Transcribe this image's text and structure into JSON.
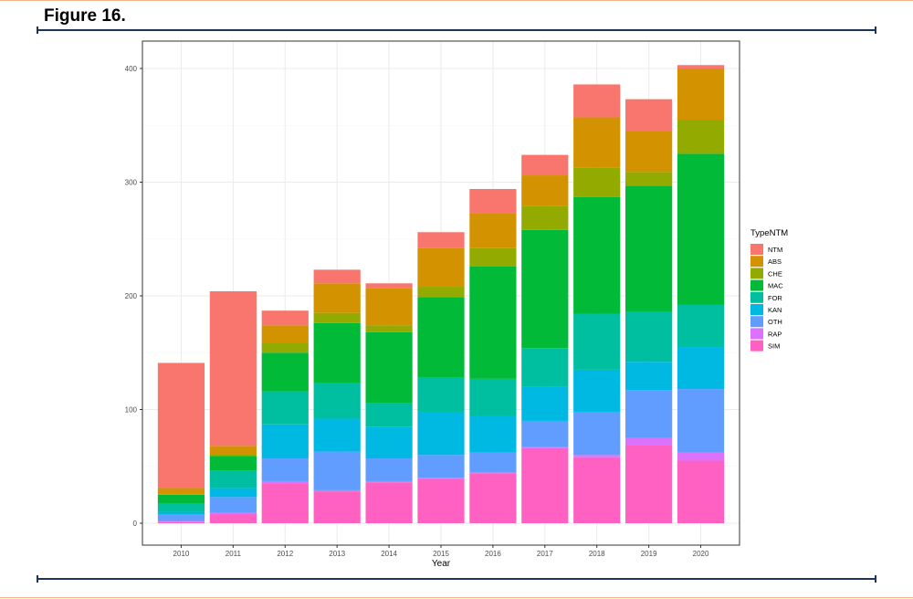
{
  "figure": {
    "title": "Figure 16."
  },
  "chart_data": {
    "type": "bar",
    "stacked": true,
    "xlabel": "Year",
    "ylabel": "",
    "ylim": [
      0,
      405
    ],
    "yticks": [
      0,
      100,
      200,
      300,
      400
    ],
    "grid": true,
    "legend": {
      "title": "TypeNTM",
      "position": "right"
    },
    "categories": [
      "2010",
      "2011",
      "2012",
      "2013",
      "2014",
      "2015",
      "2016",
      "2017",
      "2018",
      "2019",
      "2020"
    ],
    "series": [
      {
        "name": "SIM",
        "color": "#FF61C3",
        "values": [
          1,
          8,
          35,
          28,
          36,
          39,
          44,
          66,
          58,
          69,
          55
        ]
      },
      {
        "name": "RAP",
        "color": "#DB72FB",
        "values": [
          1,
          1,
          2,
          1,
          1,
          1,
          1,
          1,
          2,
          6,
          7
        ]
      },
      {
        "name": "OTH",
        "color": "#619CFF",
        "values": [
          6,
          14,
          20,
          34,
          20,
          20,
          17,
          23,
          38,
          42,
          56
        ]
      },
      {
        "name": "KAN",
        "color": "#00B9E3",
        "values": [
          2,
          8,
          30,
          29,
          28,
          38,
          32,
          30,
          37,
          25,
          37
        ]
      },
      {
        "name": "FOR",
        "color": "#00BFA0",
        "values": [
          7,
          15,
          29,
          31,
          21,
          30,
          33,
          34,
          49,
          44,
          37
        ]
      },
      {
        "name": "MAC",
        "color": "#00BA38",
        "values": [
          8,
          13,
          34,
          53,
          62,
          71,
          99,
          104,
          103,
          111,
          133
        ]
      },
      {
        "name": "CHE",
        "color": "#93AA00",
        "values": [
          0,
          2,
          9,
          9,
          6,
          9,
          16,
          21,
          26,
          12,
          30
        ]
      },
      {
        "name": "ABS",
        "color": "#D39200",
        "values": [
          6,
          7,
          15,
          26,
          33,
          34,
          31,
          27,
          44,
          36,
          45
        ]
      },
      {
        "name": "NTM",
        "color": "#F8766D",
        "values": [
          110,
          136,
          13,
          12,
          4,
          14,
          21,
          18,
          29,
          28,
          3
        ]
      }
    ],
    "legend_order": [
      "NTM",
      "ABS",
      "CHE",
      "MAC",
      "FOR",
      "KAN",
      "OTH",
      "RAP",
      "SIM"
    ]
  }
}
